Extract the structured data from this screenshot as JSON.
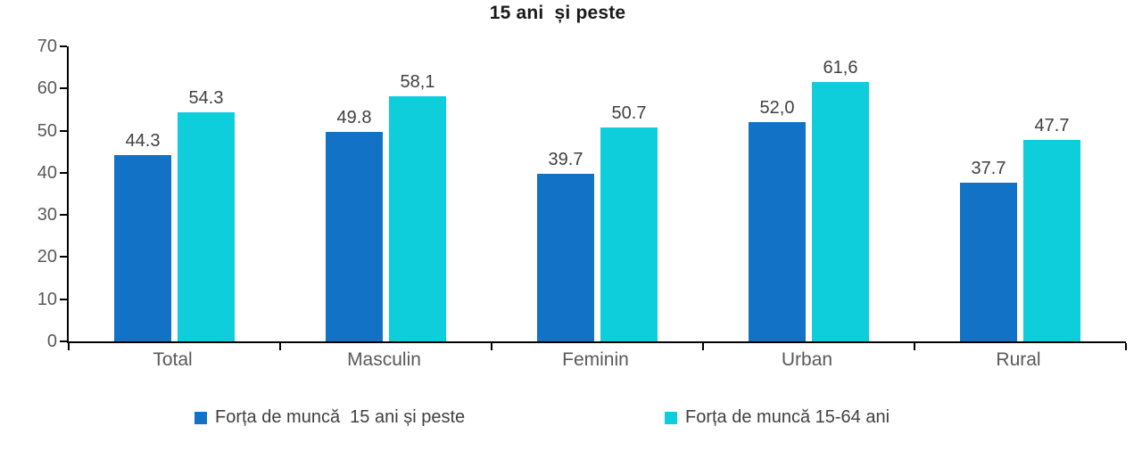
{
  "chart_data": {
    "type": "bar",
    "title": "15 ani  și peste",
    "categories": [
      "Total",
      "Masculin",
      "Feminin",
      "Urban",
      "Rural"
    ],
    "series": [
      {
        "name": "Forța de muncă  15 ani și peste",
        "color": "#1273C6",
        "values": [
          44.3,
          49.8,
          39.7,
          52.0,
          37.7
        ],
        "labels": [
          "44.3",
          "49.8",
          "39.7",
          "52,0",
          "37.7"
        ]
      },
      {
        "name": "Forța de muncă 15-64 ani",
        "color": "#0DCEDA",
        "values": [
          54.3,
          58.1,
          50.7,
          61.6,
          47.7
        ],
        "labels": [
          "54.3",
          "58,1",
          "50.7",
          "61,6",
          "47.7"
        ]
      }
    ],
    "ylim": [
      0,
      70
    ],
    "yticks": [
      0,
      10,
      20,
      30,
      40,
      50,
      60,
      70
    ],
    "grid": false,
    "legend_position": "bottom",
    "axis_color": "#000000",
    "tick_label_color": "#595959",
    "value_label_color": "#404040"
  }
}
